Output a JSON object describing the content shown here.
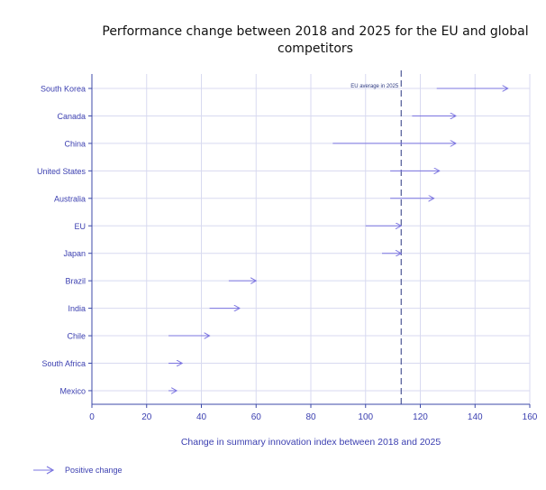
{
  "chart_data": {
    "type": "arrow-range",
    "title": "Performance change between 2018 and 2025 for the EU and global competitors",
    "xlabel": "Change in summary innovation index between 2018 and 2025",
    "ylabel": "",
    "xlim": [
      0,
      160
    ],
    "xticks": [
      0,
      20,
      40,
      60,
      80,
      100,
      120,
      140,
      160
    ],
    "grid": true,
    "categories": [
      "South Korea",
      "Canada",
      "China",
      "United States",
      "Australia",
      "EU",
      "Japan",
      "Brazil",
      "India",
      "Chile",
      "South Africa",
      "Mexico"
    ],
    "series": [
      {
        "name": "Positive change",
        "start_2018": [
          126,
          117,
          88,
          109,
          109,
          100,
          106,
          50,
          43,
          28,
          28,
          28
        ],
        "end_2025": [
          152,
          133,
          133,
          127,
          125,
          113,
          113,
          60,
          54,
          43,
          33,
          31
        ]
      }
    ],
    "reference_line": {
      "label": "EU average in 2025",
      "value": 113
    },
    "legend": {
      "position": "bottom-left",
      "entries": [
        "Positive change"
      ]
    },
    "colors": {
      "arrow": "#7b74e0",
      "axis": "#3d4aa8",
      "grid": "#d8daf0",
      "reference": "#2c3880",
      "text": "#3b3fb0"
    }
  }
}
